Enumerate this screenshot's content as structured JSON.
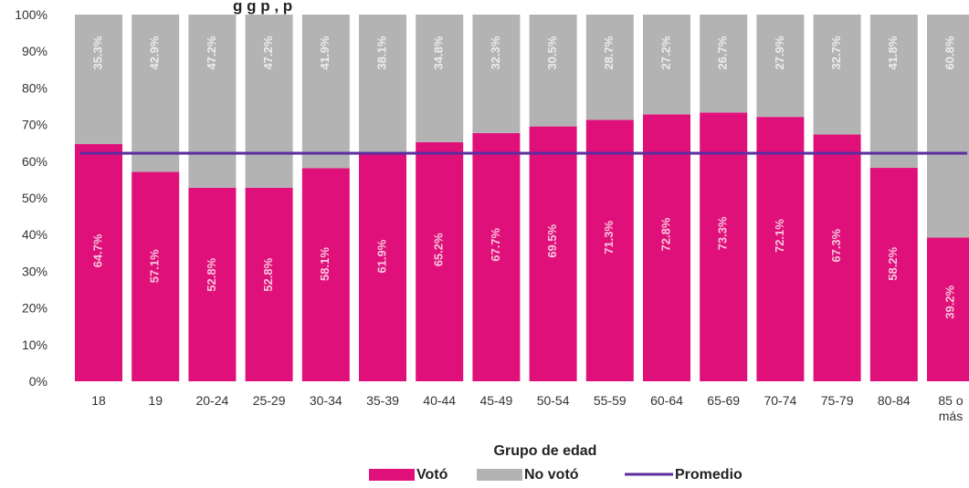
{
  "title_fragment": "g g p , p",
  "chart_data": {
    "type": "bar",
    "stacked": true,
    "categories": [
      "18",
      "19",
      "20-24",
      "25-29",
      "30-34",
      "35-39",
      "40-44",
      "45-49",
      "50-54",
      "55-59",
      "60-64",
      "65-69",
      "70-74",
      "75-79",
      "80-84",
      "85 o más"
    ],
    "series": [
      {
        "name": "Votó",
        "color": "#e0107a",
        "label_color": "#f5c6dc",
        "values": [
          64.7,
          57.1,
          52.8,
          52.8,
          58.1,
          61.9,
          65.2,
          67.7,
          69.5,
          71.3,
          72.8,
          73.3,
          72.1,
          67.3,
          58.2,
          39.2
        ],
        "labels": [
          "64.7%",
          "57.1%",
          "52.8%",
          "52.8%",
          "58.1%",
          "61.9%",
          "65.2%",
          "67.7%",
          "69.5%",
          "71.3%",
          "72.8%",
          "73.3%",
          "72.1%",
          "67.3%",
          "58.2%",
          "39.2%"
        ]
      },
      {
        "name": "No votó",
        "color": "#b3b3b3",
        "label_color": "#ececec",
        "values": [
          35.3,
          42.9,
          47.2,
          47.2,
          41.9,
          38.1,
          34.8,
          32.3,
          30.5,
          28.7,
          27.2,
          26.7,
          27.9,
          32.7,
          41.8,
          60.8
        ],
        "labels": [
          "35.3%",
          "42.9%",
          "47.2%",
          "47.2%",
          "41.9%",
          "38.1%",
          "34.8%",
          "32.3%",
          "30.5%",
          "28.7%",
          "27.2%",
          "26.7%",
          "27.9%",
          "32.7%",
          "41.8%",
          "60.8%"
        ]
      }
    ],
    "average": {
      "name": "Promedio",
      "value": 62.2,
      "color": "#5b2d9e"
    },
    "xlabel": "Grupo de edad",
    "ylabel": "",
    "ylim": [
      0,
      100
    ],
    "yticks": [
      "0%",
      "10%",
      "20%",
      "30%",
      "40%",
      "50%",
      "60%",
      "70%",
      "80%",
      "90%",
      "100%"
    ],
    "legend": {
      "position": "bottom",
      "items": [
        "Votó",
        "No votó",
        "Promedio"
      ]
    },
    "grid": false
  }
}
